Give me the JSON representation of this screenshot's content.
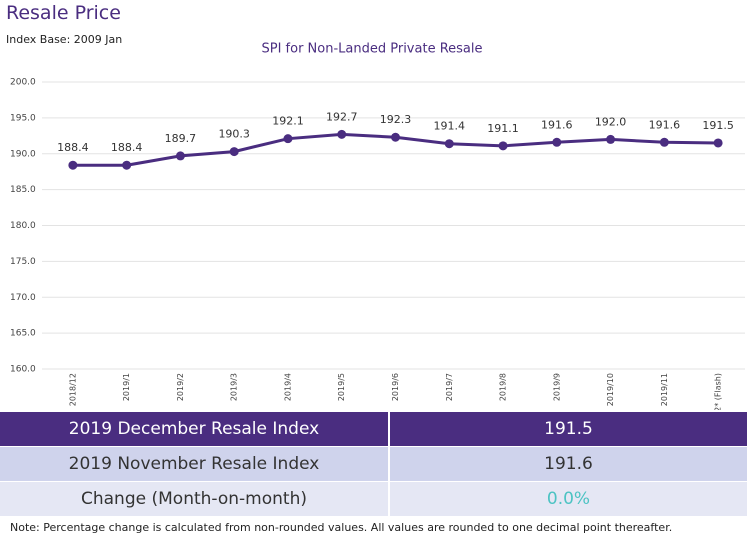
{
  "header": {
    "title": "Resale Price",
    "subtitle": "Index Base: 2009 Jan"
  },
  "chart_data": {
    "type": "line",
    "title": "SPI for Non-Landed Private Resale",
    "categories": [
      "2018/12",
      "2019/1",
      "2019/2",
      "2019/3",
      "2019/4",
      "2019/5",
      "2019/6",
      "2019/7",
      "2019/8",
      "2019/9",
      "2019/10",
      "2019/11",
      "2019/12* (Flash)"
    ],
    "values": [
      188.4,
      188.4,
      189.7,
      190.3,
      192.1,
      192.7,
      192.3,
      191.4,
      191.1,
      191.6,
      192.0,
      191.6,
      191.5
    ],
    "value_labels": [
      "188.4",
      "188.4",
      "189.7",
      "190.3",
      "192.1",
      "192.7",
      "192.3",
      "191.4",
      "191.1",
      "191.6",
      "192.0",
      "191.6",
      "191.5"
    ],
    "color": "#4a2d80",
    "ylim": [
      160,
      200
    ],
    "yticks": [
      {
        "value": 160,
        "label": "160.0"
      },
      {
        "value": 165,
        "label": "165.0"
      },
      {
        "value": 170,
        "label": "170.0"
      },
      {
        "value": 175,
        "label": "175.0"
      },
      {
        "value": 180,
        "label": "180.0"
      },
      {
        "value": 185,
        "label": "185.0"
      },
      {
        "value": 190,
        "label": "190.0"
      },
      {
        "value": 195,
        "label": "195.0"
      },
      {
        "value": 200,
        "label": "200.0"
      }
    ],
    "grid": true
  },
  "table": {
    "rows": [
      [
        "2019 December Resale Index",
        "191.5"
      ],
      [
        "2019 November Resale Index",
        "191.6"
      ],
      [
        "Change (Month-on-month)",
        "0.0%"
      ]
    ]
  },
  "note": "Note: Percentage change is calculated from non-rounded values.  All values are rounded to one decimal point thereafter."
}
